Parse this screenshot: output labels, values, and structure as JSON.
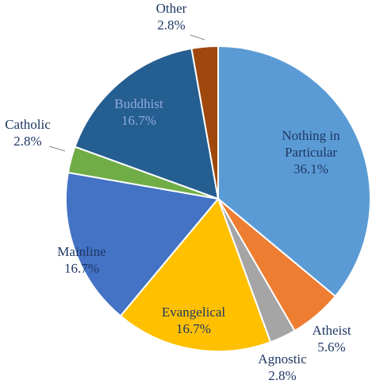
{
  "chart_data": {
    "type": "pie",
    "title": "",
    "slices": [
      {
        "label": "Nothing in Particular",
        "label_lines": [
          "Nothing  in",
          "Particular"
        ],
        "value": 36.1,
        "value_label": "36.1%",
        "color": "#5b9bd5",
        "text_color": "#1f3864"
      },
      {
        "label": "Atheist",
        "label_lines": [
          "Atheist"
        ],
        "value": 5.6,
        "value_label": "5.6%",
        "color": "#ed7d31",
        "text_color": "#1f3864"
      },
      {
        "label": "Agnostic",
        "label_lines": [
          "Agnostic"
        ],
        "value": 2.8,
        "value_label": "2.8%",
        "color": "#a5a5a5",
        "text_color": "#1f3864"
      },
      {
        "label": "Evangelical",
        "label_lines": [
          "Evangelical"
        ],
        "value": 16.7,
        "value_label": "16.7%",
        "color": "#ffc000",
        "text_color": "#1f3864"
      },
      {
        "label": "Mainline",
        "label_lines": [
          "Mainline"
        ],
        "value": 16.7,
        "value_label": "16.7%",
        "color": "#4472c4",
        "text_color": "#1f3864"
      },
      {
        "label": "Catholic",
        "label_lines": [
          "Catholic"
        ],
        "value": 2.8,
        "value_label": "2.8%",
        "color": "#70ad47",
        "text_color": "#1f3864"
      },
      {
        "label": "Buddhist",
        "label_lines": [
          "Buddhist"
        ],
        "value": 16.7,
        "value_label": "16.7%",
        "color": "#255e91",
        "text_color": "#8faadc"
      },
      {
        "label": "Other",
        "label_lines": [
          "Other"
        ],
        "value": 2.8,
        "value_label": "2.8%",
        "color": "#9e480e",
        "text_color": "#1f3864"
      }
    ]
  }
}
